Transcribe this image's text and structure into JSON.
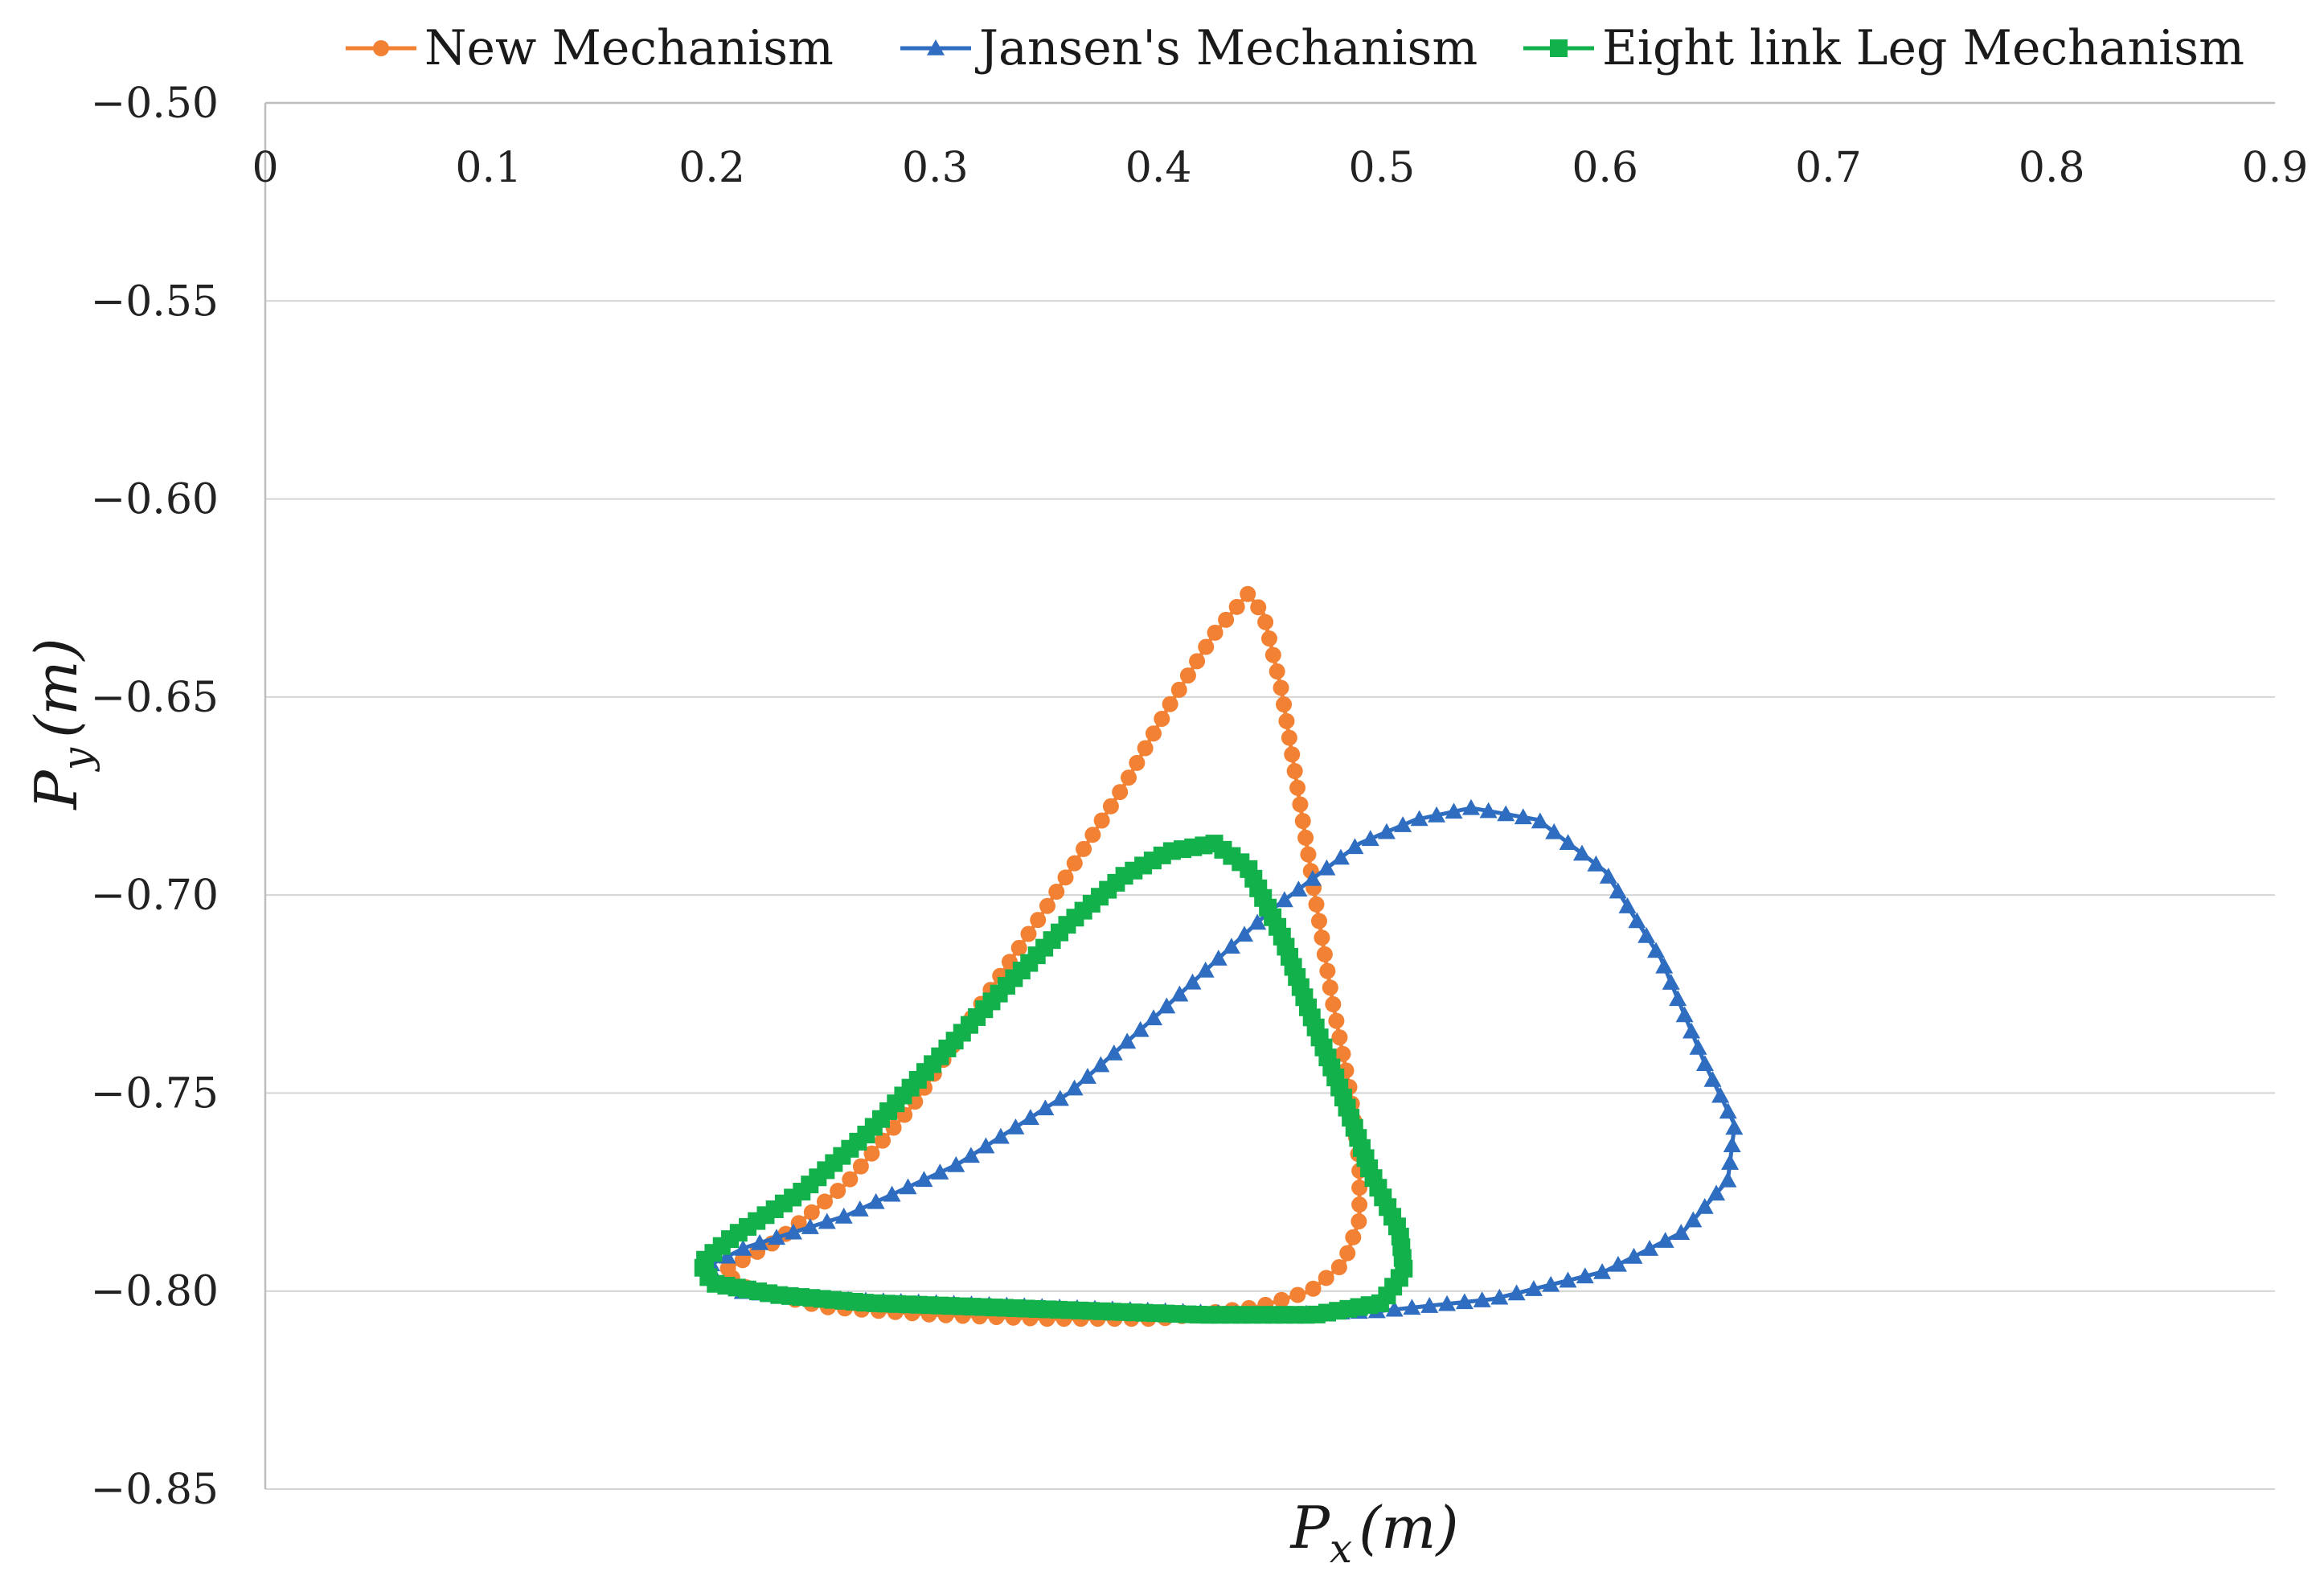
{
  "chart_data": {
    "type": "line",
    "title": "",
    "xlabel": {
      "main": "P",
      "sub": "x",
      "unit": "(m)"
    },
    "ylabel": {
      "main": "P",
      "sub": "y",
      "unit": "(m)"
    },
    "xlim": [
      0,
      0.9
    ],
    "ylim": [
      -0.85,
      -0.5
    ],
    "xticks": [
      "0",
      "0.1",
      "0.2",
      "0.3",
      "0.4",
      "0.5",
      "0.6",
      "0.7",
      "0.8",
      "0.9"
    ],
    "yticks": [
      "−0.50",
      "−0.55",
      "−0.60",
      "−0.65",
      "−0.70",
      "−0.75",
      "−0.80",
      "−0.85"
    ],
    "grid": true,
    "legend_position": "top",
    "series": [
      {
        "name": "New Mechanism",
        "color": "#F28134",
        "marker": "circle",
        "points": [
          [
            0.44,
            -0.624
          ],
          [
            0.447,
            -0.629
          ],
          [
            0.455,
            -0.648
          ],
          [
            0.462,
            -0.672
          ],
          [
            0.47,
            -0.7
          ],
          [
            0.478,
            -0.727
          ],
          [
            0.486,
            -0.75
          ],
          [
            0.49,
            -0.768
          ],
          [
            0.49,
            -0.782
          ],
          [
            0.483,
            -0.793
          ],
          [
            0.468,
            -0.8
          ],
          [
            0.445,
            -0.804
          ],
          [
            0.4,
            -0.807
          ],
          [
            0.35,
            -0.807
          ],
          [
            0.3,
            -0.806
          ],
          [
            0.25,
            -0.804
          ],
          [
            0.215,
            -0.799
          ],
          [
            0.205,
            -0.795
          ],
          [
            0.23,
            -0.787
          ],
          [
            0.26,
            -0.773
          ],
          [
            0.29,
            -0.753
          ],
          [
            0.32,
            -0.728
          ],
          [
            0.35,
            -0.703
          ],
          [
            0.385,
            -0.672
          ],
          [
            0.405,
            -0.652
          ],
          [
            0.425,
            -0.634
          ],
          [
            0.44,
            -0.624
          ]
        ]
      },
      {
        "name": "Jansen's Mechanism",
        "color": "#2E6DBF",
        "marker": "triangle",
        "points": [
          [
            0.54,
            -0.678
          ],
          [
            0.57,
            -0.681
          ],
          [
            0.6,
            -0.694
          ],
          [
            0.625,
            -0.716
          ],
          [
            0.645,
            -0.743
          ],
          [
            0.658,
            -0.758
          ],
          [
            0.655,
            -0.772
          ],
          [
            0.635,
            -0.785
          ],
          [
            0.6,
            -0.795
          ],
          [
            0.55,
            -0.802
          ],
          [
            0.5,
            -0.805
          ],
          [
            0.45,
            -0.806
          ],
          [
            0.4,
            -0.805
          ],
          [
            0.35,
            -0.804
          ],
          [
            0.3,
            -0.803
          ],
          [
            0.25,
            -0.802
          ],
          [
            0.21,
            -0.8
          ],
          [
            0.197,
            -0.794
          ],
          [
            0.215,
            -0.789
          ],
          [
            0.26,
            -0.781
          ],
          [
            0.31,
            -0.768
          ],
          [
            0.36,
            -0.75
          ],
          [
            0.4,
            -0.73
          ],
          [
            0.45,
            -0.704
          ],
          [
            0.49,
            -0.687
          ],
          [
            0.515,
            -0.681
          ],
          [
            0.54,
            -0.678
          ]
        ]
      },
      {
        "name": "Eight link Leg Mechanism",
        "color": "#12B14B",
        "marker": "square",
        "points": [
          [
            0.425,
            -0.687
          ],
          [
            0.44,
            -0.693
          ],
          [
            0.455,
            -0.71
          ],
          [
            0.468,
            -0.73
          ],
          [
            0.482,
            -0.75
          ],
          [
            0.495,
            -0.77
          ],
          [
            0.508,
            -0.785
          ],
          [
            0.51,
            -0.795
          ],
          [
            0.5,
            -0.803
          ],
          [
            0.47,
            -0.806
          ],
          [
            0.42,
            -0.806
          ],
          [
            0.37,
            -0.805
          ],
          [
            0.32,
            -0.804
          ],
          [
            0.27,
            -0.803
          ],
          [
            0.23,
            -0.801
          ],
          [
            0.2,
            -0.798
          ],
          [
            0.195,
            -0.793
          ],
          [
            0.21,
            -0.786
          ],
          [
            0.24,
            -0.775
          ],
          [
            0.27,
            -0.76
          ],
          [
            0.3,
            -0.742
          ],
          [
            0.33,
            -0.724
          ],
          [
            0.36,
            -0.707
          ],
          [
            0.385,
            -0.695
          ],
          [
            0.405,
            -0.689
          ],
          [
            0.425,
            -0.687
          ]
        ]
      }
    ]
  }
}
